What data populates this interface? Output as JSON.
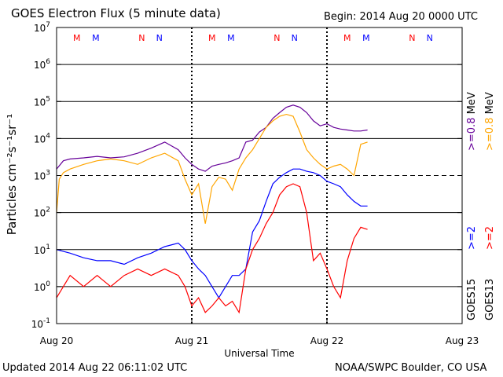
{
  "header": {
    "title": "GOES Electron Flux (5 minute data)",
    "begin": "Begin: 2014 Aug 20 0000 UTC"
  },
  "footer": {
    "updated": "Updated 2014 Aug 22 06:11:02 UTC",
    "source": "NOAA/SWPC Boulder, CO USA"
  },
  "colors": {
    "goes15_2mev": "#0000ff",
    "goes13_2mev": "#ff0000",
    "goes15_08mev": "#660099",
    "goes13_08mev": "#ffa500",
    "marker_m": "#ff0000",
    "marker_n": "#0000ff"
  },
  "chart_data": {
    "type": "line",
    "ylabel": "Particles cm⁻²s⁻¹sr⁻¹",
    "xlabel": "Universal Time",
    "yscale": "log",
    "ylim": [
      0.1,
      10000000
    ],
    "y_ticks": [
      {
        "value": 0.1,
        "base": "10",
        "exp": "-1"
      },
      {
        "value": 1,
        "base": "10",
        "exp": "0"
      },
      {
        "value": 10,
        "base": "10",
        "exp": "1"
      },
      {
        "value": 100,
        "base": "10",
        "exp": "2"
      },
      {
        "value": 1000,
        "base": "10",
        "exp": "3"
      },
      {
        "value": 10000,
        "base": "10",
        "exp": "4"
      },
      {
        "value": 100000,
        "base": "10",
        "exp": "5"
      },
      {
        "value": 1000000,
        "base": "10",
        "exp": "6"
      },
      {
        "value": 10000000,
        "base": "10",
        "exp": "7"
      }
    ],
    "xlim_days": [
      0,
      3
    ],
    "x_ticks": [
      {
        "day": 0,
        "label": "Aug 20"
      },
      {
        "day": 1,
        "label": "Aug 21"
      },
      {
        "day": 2,
        "label": "Aug 22"
      },
      {
        "day": 3,
        "label": "Aug 23"
      }
    ],
    "grid": true,
    "threshold_line": 1000,
    "markers": [
      {
        "label": "M",
        "day": 0.15,
        "color": "#ff0000"
      },
      {
        "label": "M",
        "day": 0.29,
        "color": "#0000ff"
      },
      {
        "label": "N",
        "day": 0.63,
        "color": "#ff0000"
      },
      {
        "label": "N",
        "day": 0.76,
        "color": "#0000ff"
      },
      {
        "label": "M",
        "day": 1.15,
        "color": "#ff0000"
      },
      {
        "label": "M",
        "day": 1.29,
        "color": "#0000ff"
      },
      {
        "label": "N",
        "day": 1.63,
        "color": "#ff0000"
      },
      {
        "label": "N",
        "day": 1.76,
        "color": "#0000ff"
      },
      {
        "label": "M",
        "day": 2.15,
        "color": "#ff0000"
      },
      {
        "label": "M",
        "day": 2.29,
        "color": "#0000ff"
      },
      {
        "label": "N",
        "day": 2.63,
        "color": "#ff0000"
      },
      {
        "label": "N",
        "day": 2.76,
        "color": "#0000ff"
      }
    ],
    "legend": [
      {
        "satellite": "GOES15",
        "energy_high": ">=2",
        "energy_low": ">=0.8",
        "unit": "MeV",
        "color_high": "#0000ff",
        "color_low": "#660099"
      },
      {
        "satellite": "GOES13",
        "energy_high": ">=2",
        "energy_low": ">=0.8",
        "unit": "MeV",
        "color_high": "#ff0000",
        "color_low": "#ffa500"
      }
    ],
    "series": [
      {
        "name": "GOES15 >=0.8 MeV",
        "color": "#660099",
        "day": [
          0,
          0.05,
          0.1,
          0.2,
          0.3,
          0.4,
          0.5,
          0.6,
          0.7,
          0.8,
          0.9,
          0.95,
          1.0,
          1.05,
          1.1,
          1.15,
          1.2,
          1.25,
          1.3,
          1.35,
          1.4,
          1.45,
          1.5,
          1.55,
          1.6,
          1.65,
          1.7,
          1.75,
          1.8,
          1.85,
          1.9,
          1.95,
          2.0,
          2.05,
          2.1,
          2.15,
          2.2,
          2.25,
          2.3
        ],
        "values": [
          1500,
          2500,
          2800,
          3000,
          3300,
          3000,
          3200,
          4000,
          5500,
          8000,
          5000,
          3000,
          2000,
          1500,
          1300,
          1800,
          2000,
          2200,
          2500,
          3000,
          8000,
          9000,
          15000,
          20000,
          35000,
          50000,
          70000,
          80000,
          70000,
          50000,
          30000,
          22000,
          25000,
          20000,
          18000,
          17000,
          16000,
          16000,
          17000
        ]
      },
      {
        "name": "GOES13 >=0.8 MeV",
        "color": "#ffa500",
        "day": [
          0,
          0.02,
          0.05,
          0.1,
          0.2,
          0.3,
          0.4,
          0.5,
          0.6,
          0.7,
          0.8,
          0.9,
          0.95,
          1.0,
          1.05,
          1.1,
          1.15,
          1.2,
          1.25,
          1.3,
          1.35,
          1.4,
          1.45,
          1.5,
          1.55,
          1.6,
          1.65,
          1.7,
          1.75,
          1.8,
          1.85,
          1.9,
          1.95,
          2.0,
          2.05,
          2.1,
          2.15,
          2.2,
          2.25,
          2.3
        ],
        "values": [
          100,
          800,
          1200,
          1500,
          2000,
          2500,
          2800,
          2500,
          2000,
          3000,
          4000,
          2500,
          800,
          300,
          600,
          50,
          500,
          900,
          800,
          400,
          1500,
          3000,
          5000,
          10000,
          20000,
          30000,
          40000,
          45000,
          40000,
          15000,
          5000,
          3000,
          2000,
          1500,
          1800,
          2000,
          1500,
          1000,
          7000,
          8000
        ]
      },
      {
        "name": "GOES15 >=2 MeV",
        "color": "#0000ff",
        "day": [
          0,
          0.1,
          0.2,
          0.3,
          0.4,
          0.5,
          0.6,
          0.7,
          0.8,
          0.9,
          0.95,
          1.0,
          1.05,
          1.1,
          1.15,
          1.2,
          1.25,
          1.3,
          1.35,
          1.4,
          1.45,
          1.5,
          1.55,
          1.6,
          1.65,
          1.7,
          1.75,
          1.8,
          1.85,
          1.9,
          1.95,
          2.0,
          2.05,
          2.1,
          2.15,
          2.2,
          2.25,
          2.3
        ],
        "values": [
          10,
          8,
          6,
          5,
          5,
          4,
          6,
          8,
          12,
          15,
          10,
          5,
          3,
          2,
          1,
          0.5,
          1,
          2,
          2,
          3,
          30,
          60,
          200,
          600,
          900,
          1200,
          1500,
          1500,
          1300,
          1200,
          1000,
          700,
          600,
          500,
          300,
          200,
          150,
          150
        ]
      },
      {
        "name": "GOES13 >=2 MeV",
        "color": "#ff0000",
        "day": [
          0,
          0.1,
          0.2,
          0.3,
          0.4,
          0.5,
          0.6,
          0.7,
          0.8,
          0.9,
          0.95,
          1.0,
          1.05,
          1.1,
          1.15,
          1.2,
          1.25,
          1.3,
          1.35,
          1.4,
          1.45,
          1.5,
          1.55,
          1.6,
          1.65,
          1.7,
          1.75,
          1.8,
          1.85,
          1.9,
          1.95,
          2.0,
          2.05,
          2.1,
          2.15,
          2.2,
          2.25,
          2.3
        ],
        "values": [
          0.5,
          2,
          1,
          2,
          1,
          2,
          3,
          2,
          3,
          2,
          1,
          0.3,
          0.5,
          0.2,
          0.3,
          0.5,
          0.3,
          0.4,
          0.2,
          3,
          10,
          20,
          50,
          100,
          300,
          500,
          600,
          500,
          100,
          5,
          8,
          3,
          1,
          0.5,
          5,
          20,
          40,
          35
        ]
      }
    ]
  }
}
